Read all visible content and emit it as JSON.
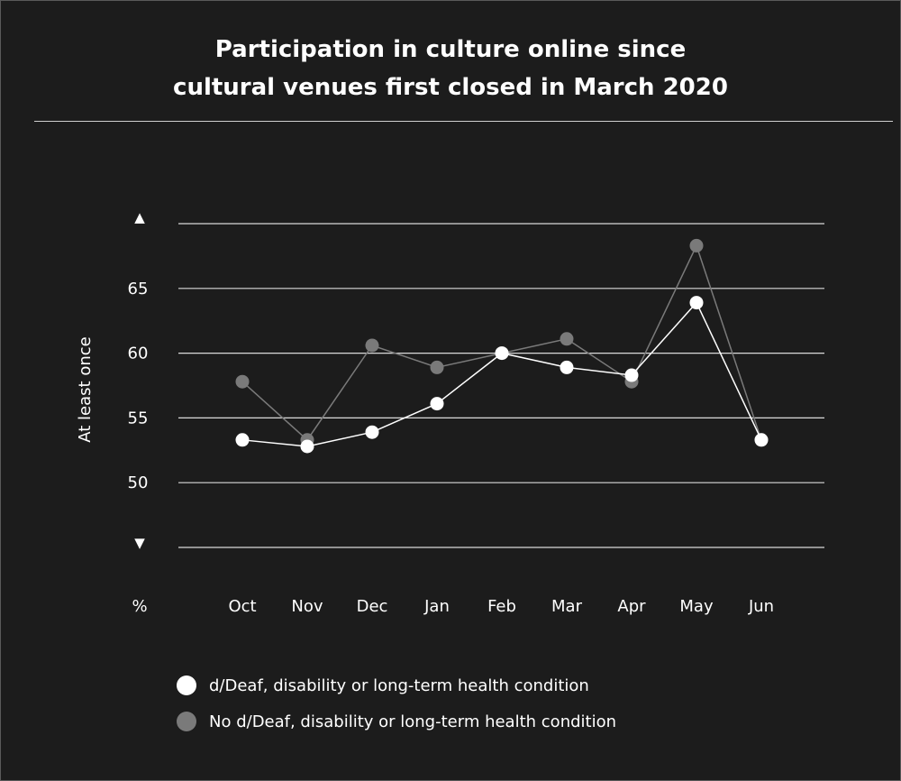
{
  "chart_data": {
    "type": "line",
    "title": "Participation in culture online since cultural venues first closed in March 2020",
    "title_lines": [
      "Participation in culture online since",
      "cultural venues first closed in March 2020"
    ],
    "ylabel": "At least once",
    "y_unit_label": "%",
    "categories": [
      "Oct",
      "Nov",
      "Dec",
      "Jan",
      "Feb",
      "Mar",
      "Apr",
      "May",
      "Jun"
    ],
    "ylim": [
      45,
      70
    ],
    "y_ticks": [
      50,
      55,
      60,
      65
    ],
    "y_gridlines": [
      45,
      50,
      55,
      60,
      65,
      70
    ],
    "axis_break_markers": {
      "top": "▲",
      "bottom": "▼"
    },
    "grid": true,
    "legend_position": "bottom-left",
    "series": [
      {
        "name": "No d/Deaf, disability or long-term health condition",
        "color": "#7a7a7a",
        "values": [
          57.8,
          53.3,
          60.6,
          58.9,
          60.0,
          61.1,
          57.8,
          68.3,
          53.3
        ]
      },
      {
        "name": "d/Deaf, disability or long-term health condition",
        "color": "#ffffff",
        "values": [
          53.3,
          52.8,
          53.9,
          56.1,
          60.0,
          58.9,
          58.3,
          63.9,
          53.3
        ]
      }
    ]
  },
  "legend": {
    "items": [
      {
        "label": "d/Deaf, disability or long-term health condition",
        "color": "#ffffff"
      },
      {
        "label": "No d/Deaf, disability or long-term health condition",
        "color": "#7a7a7a"
      }
    ]
  }
}
